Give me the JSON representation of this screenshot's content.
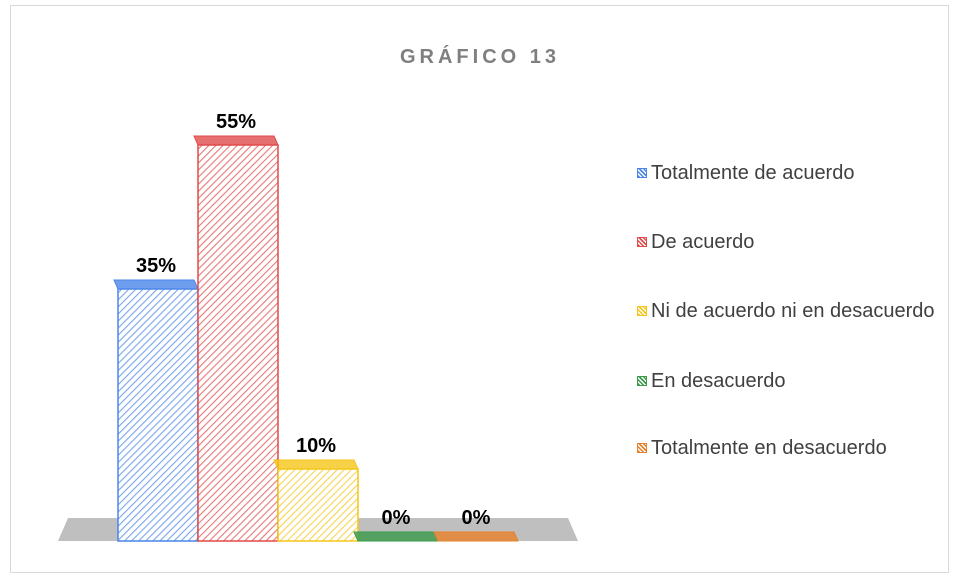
{
  "chart_data": {
    "type": "bar3d",
    "title": "GRÁFICO 13",
    "categories": [
      "Totalmente de acuerdo",
      "De acuerdo",
      "Ni de acuerdo ni en desacuerdo",
      "En desacuerdo",
      "Totalmente en desacuerdo"
    ],
    "values": [
      35,
      55,
      10,
      0,
      0
    ],
    "value_labels": [
      "35%",
      "55%",
      "10%",
      "0%",
      "0%"
    ],
    "colors": [
      "#4a86e8",
      "#e04b4b",
      "#f5c518",
      "#3a9a4a",
      "#e8812a"
    ]
  }
}
